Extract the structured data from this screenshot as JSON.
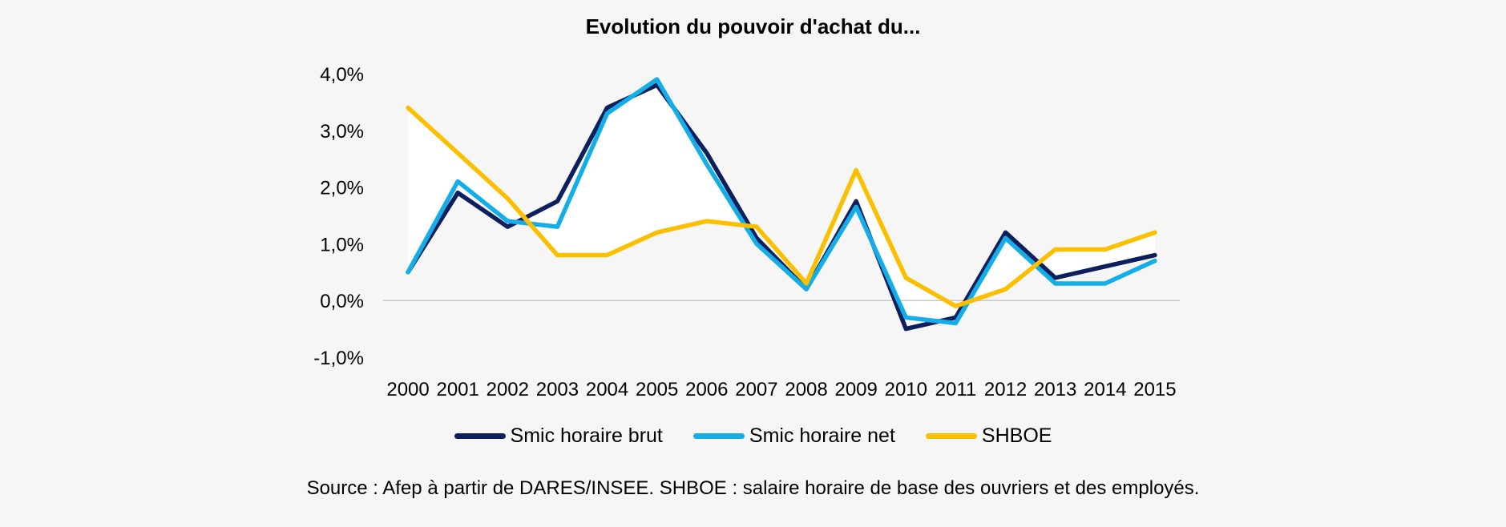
{
  "chart_data": {
    "type": "line",
    "title": "Evolution du pouvoir d'achat du...",
    "categories": [
      "2000",
      "2001",
      "2002",
      "2003",
      "2004",
      "2005",
      "2006",
      "2007",
      "2008",
      "2009",
      "2010",
      "2011",
      "2012",
      "2013",
      "2014",
      "2015"
    ],
    "y_ticks": [
      "4,0%",
      "3,0%",
      "2,0%",
      "1,0%",
      "0,0%",
      "-1,0%"
    ],
    "ylim": [
      -1.0,
      4.0
    ],
    "legend_position": "bottom",
    "grid": false,
    "series": [
      {
        "name": "Smic horaire brut",
        "color": "#0d1f5c",
        "values": [
          0.5,
          1.9,
          1.3,
          1.75,
          3.4,
          3.8,
          2.6,
          1.1,
          0.2,
          1.75,
          -0.5,
          -0.3,
          1.2,
          0.4,
          0.6,
          0.8
        ]
      },
      {
        "name": "Smic horaire net",
        "color": "#13aee8",
        "values": [
          0.5,
          2.1,
          1.4,
          1.3,
          3.3,
          3.9,
          2.4,
          1.0,
          0.2,
          1.65,
          -0.3,
          -0.4,
          1.1,
          0.3,
          0.3,
          0.7
        ]
      },
      {
        "name": "SHBOE",
        "color": "#fbbf00",
        "values": [
          3.4,
          2.6,
          1.8,
          0.8,
          0.8,
          1.2,
          1.4,
          1.3,
          0.3,
          2.3,
          0.4,
          -0.1,
          0.2,
          0.9,
          0.9,
          1.2
        ]
      }
    ]
  },
  "source_note": "Source : Afep à partir de DARES/INSEE. SHBOE : salaire horaire de base des ouvriers et des employés."
}
